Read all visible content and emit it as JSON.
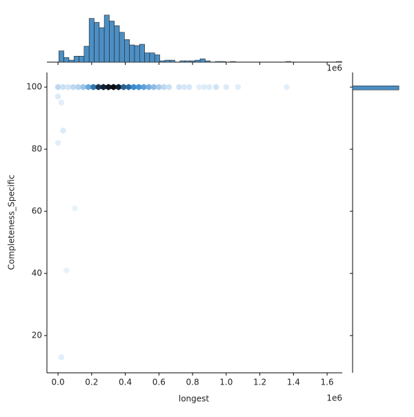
{
  "chart_data": [
    {
      "type": "hexbin",
      "x_label": "longest",
      "y_label": "Completeness_Specific",
      "x_offset_label": "1e6",
      "color": "#3a8dd0",
      "x": [
        0,
        30000,
        60000,
        90000,
        120000,
        150000,
        180000,
        210000,
        240000,
        270000,
        300000,
        330000,
        360000,
        390000,
        420000,
        450000,
        480000,
        510000,
        540000,
        570000,
        600000,
        630000,
        660000,
        720000,
        750000,
        780000,
        840000,
        870000,
        900000,
        940000,
        1000000,
        1070000,
        1360000,
        0,
        20000,
        30000,
        0,
        100000,
        50000,
        20000
      ],
      "y": [
        100,
        100,
        100,
        100,
        100,
        100,
        100,
        100,
        100,
        100,
        100,
        100,
        100,
        100,
        100,
        100,
        100,
        100,
        100,
        100,
        100,
        100,
        100,
        100,
        100,
        100,
        100,
        100,
        100,
        100,
        100,
        100,
        100,
        97,
        95,
        86,
        82,
        61,
        41,
        13
      ],
      "values": [
        8,
        6,
        5,
        8,
        10,
        14,
        22,
        35,
        50,
        55,
        58,
        60,
        56,
        40,
        38,
        30,
        28,
        24,
        20,
        16,
        12,
        8,
        6,
        5,
        4,
        4,
        2,
        3,
        3,
        5,
        3,
        2,
        2,
        3,
        2,
        3,
        2,
        1,
        1,
        2
      ],
      "xlim": [
        -66000,
        1690000
      ],
      "ylim": [
        8,
        104.7
      ],
      "xticks": [
        {
          "value": 0,
          "label": "0.0"
        },
        {
          "value": 200000,
          "label": "0.2"
        },
        {
          "value": 400000,
          "label": "0.4"
        },
        {
          "value": 600000,
          "label": "0.6"
        },
        {
          "value": 800000,
          "label": "0.8"
        },
        {
          "value": 1000000,
          "label": "1.0"
        },
        {
          "value": 1200000,
          "label": "1.2"
        },
        {
          "value": 1400000,
          "label": "1.4"
        },
        {
          "value": 1600000,
          "label": "1.6"
        }
      ],
      "yticks": [
        20,
        40,
        60,
        80,
        100
      ]
    },
    {
      "type": "histogram",
      "color": "#4c8fc4",
      "bins": [
        5000,
        35000,
        65000,
        95000,
        125000,
        155000,
        185000,
        215000,
        245000,
        275000,
        305000,
        335000,
        365000,
        395000,
        425000,
        455000,
        485000,
        515000,
        545000,
        575000,
        605000,
        635000,
        665000,
        695000,
        725000,
        755000,
        785000,
        815000,
        845000,
        875000,
        905000,
        935000,
        965000,
        995000,
        1025000,
        1055000,
        1085000,
        1115000,
        1145000,
        1175000,
        1205000,
        1235000,
        1265000,
        1295000,
        1325000,
        1355000,
        1385000,
        1415000,
        1445000,
        1475000,
        1505000,
        1535000,
        1565000,
        1595000,
        1625000,
        1655000,
        1685000
      ],
      "values": [
        17,
        7,
        3,
        9,
        9,
        24,
        66,
        60,
        52,
        71,
        62,
        55,
        45,
        34,
        26,
        25,
        27,
        14,
        14,
        11,
        2,
        3,
        3,
        0,
        2,
        2,
        2,
        3,
        5,
        2,
        0,
        1,
        1,
        0,
        1,
        0,
        0,
        0,
        0,
        0,
        0,
        0,
        0,
        0,
        0,
        1,
        0,
        0,
        0,
        0,
        0,
        0,
        0,
        0,
        0,
        1
      ],
      "xlim": [
        -66000,
        1690000
      ],
      "ylim": [
        0,
        75
      ],
      "xticks": [
        0,
        200000,
        400000,
        600000,
        800000,
        1000000,
        1200000,
        1400000,
        1600000
      ]
    },
    {
      "type": "histogram",
      "orientation": "horizontal",
      "color": "#4c8fc4",
      "bins": [
        99.1,
        100.4
      ],
      "values": [
        700
      ],
      "xlim": [
        0,
        730
      ],
      "ylim": [
        8,
        104.7
      ],
      "yticks": [
        20,
        40,
        60,
        80,
        100
      ]
    }
  ]
}
